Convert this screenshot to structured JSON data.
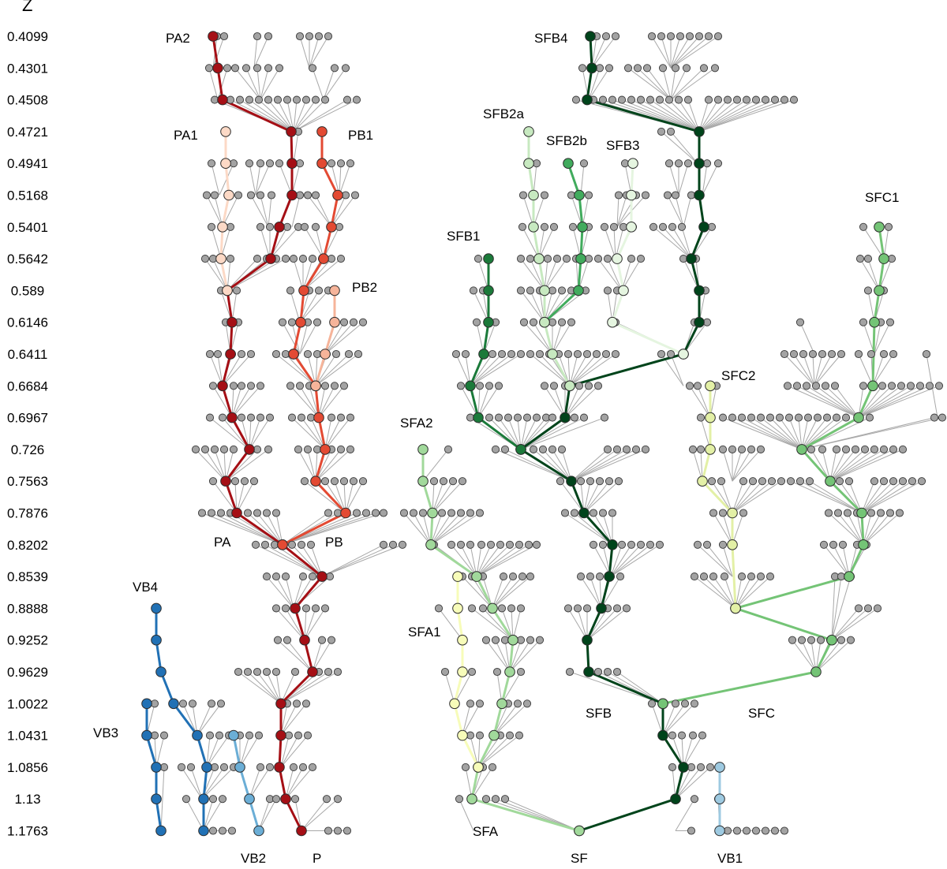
{
  "axis": {
    "title": "Z",
    "levels": [
      "0.4099",
      "0.4301",
      "0.4508",
      "0.4721",
      "0.4941",
      "0.5168",
      "0.5401",
      "0.5642",
      "0.589",
      "0.6146",
      "0.6411",
      "0.6684",
      "0.6967",
      "0.726",
      "0.7563",
      "0.7876",
      "0.8202",
      "0.8539",
      "0.8888",
      "0.9252",
      "0.9629",
      "1.0022",
      "1.0431",
      "1.0856",
      "1.13",
      "1.1763"
    ]
  },
  "branch_labels": {
    "PA2": "PA2",
    "PA1": "PA1",
    "PB1": "PB1",
    "PB2": "PB2",
    "PA": "PA",
    "PB": "PB",
    "P": "P",
    "VB1": "VB1",
    "VB2": "VB2",
    "VB3": "VB3",
    "VB4": "VB4",
    "SFB4": "SFB4",
    "SFB2a": "SFB2a",
    "SFB2b": "SFB2b",
    "SFB3": "SFB3",
    "SFB1": "SFB1",
    "SFC1": "SFC1",
    "SFC2": "SFC2",
    "SFA2": "SFA2",
    "SFA1": "SFA1",
    "SFB": "SFB",
    "SFC": "SFC",
    "SFA": "SFA",
    "SF": "SF"
  },
  "branch_colors": {
    "P": "#a50f15",
    "PB": "#e34a33",
    "PA1": "#fcd9c6",
    "PB2": "#f6b49a",
    "VB": "#2171b5",
    "VB2": "#6baed6",
    "VB1": "#9ecae1",
    "SFB": "#00441b",
    "SFB1": "#1b7a3a",
    "SFB2b": "#41ab5d",
    "SFB2a": "#c7e9c0",
    "SFB3": "#e5f5e0",
    "SFC": "#74c476",
    "SFA": "#a1d99b",
    "SFA1": "#f7fcb9",
    "SFC2": "#e3f0a6",
    "grey": "#a3a3a3"
  }
}
